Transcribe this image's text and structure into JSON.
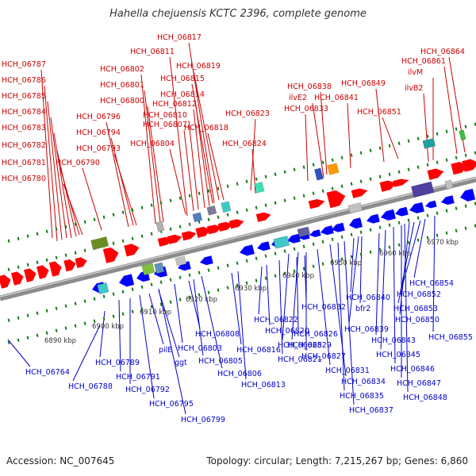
{
  "title": "Hahella chejuensis KCTC 2396, complete genome",
  "footer": {
    "accession": "Accession: NC_007645",
    "summary": "Topology: circular; Length: 7,215,267 bp; Genes: 6,860"
  },
  "colors": {
    "forward_label": "#cc0000",
    "reverse_label": "#0000cc",
    "forward_feature": "#ff0000",
    "reverse_feature": "#0000ff",
    "backbone": "#8c8c8c",
    "tick": "#1a7a1a"
  },
  "kbp_labels": [
    "6890 kbp",
    "6900 kbp",
    "6910 kbp",
    "6920 kbp",
    "6930 kbp",
    "6940 kbp",
    "6950 kbp",
    "6960 kbp",
    "6970 kbp"
  ],
  "top_genes": [
    "HCH_06787",
    "HCH_06786",
    "HCH_06785",
    "HCH_06784",
    "HCH_06783",
    "HCH_06782",
    "HCH_06781",
    "HCH_06780",
    "HCH_06796",
    "HCH_06794",
    "HCH_06793",
    "HCH_06790",
    "HCH_06802",
    "HCH_06801",
    "HCH_06800",
    "HCH_06811",
    "HCH_06817",
    "HCH_06819",
    "HCH_06815",
    "HCH_06814",
    "HCH_06812",
    "HCH_06810",
    "HCH_06807",
    "HCH_06804",
    "HCH_06818",
    "HCH_06823",
    "HCH_06824",
    "HCH_06838",
    "ilvE2",
    "HCH_06833",
    "HCH_06841",
    "HCH_06849",
    "HCH_06851",
    "HCH_06864",
    "HCH_06861",
    "ilvM",
    "ilvB2"
  ],
  "bottom_genes": [
    "HCH_06764",
    "HCH_06788",
    "HCH_06789",
    "HCH_06791",
    "HCH_06792",
    "HCH_06795",
    "pilE",
    "ggt",
    "HCH_06803",
    "HCH_06808",
    "HCH_06805",
    "HCH_06806",
    "HCH_06799",
    "HCH_06816",
    "HCH_06813",
    "HCH_06822",
    "HCH_06820",
    "HCH_06821",
    "HCH_06832",
    "HCH_06826",
    "HCH_06829",
    "HCH_06825",
    "HCH_06827",
    "HCH_06831",
    "HCH_06834",
    "HCH_06835",
    "HCH_06837",
    "HCH_06840",
    "bfr2",
    "HCH_06839",
    "HCH_06843",
    "HCH_06845",
    "HCH_06846",
    "HCH_06847",
    "HCH_06848",
    "HCH_06854",
    "HCH_06852",
    "HCH_06853",
    "HCH_06850",
    "HCH_06855"
  ]
}
